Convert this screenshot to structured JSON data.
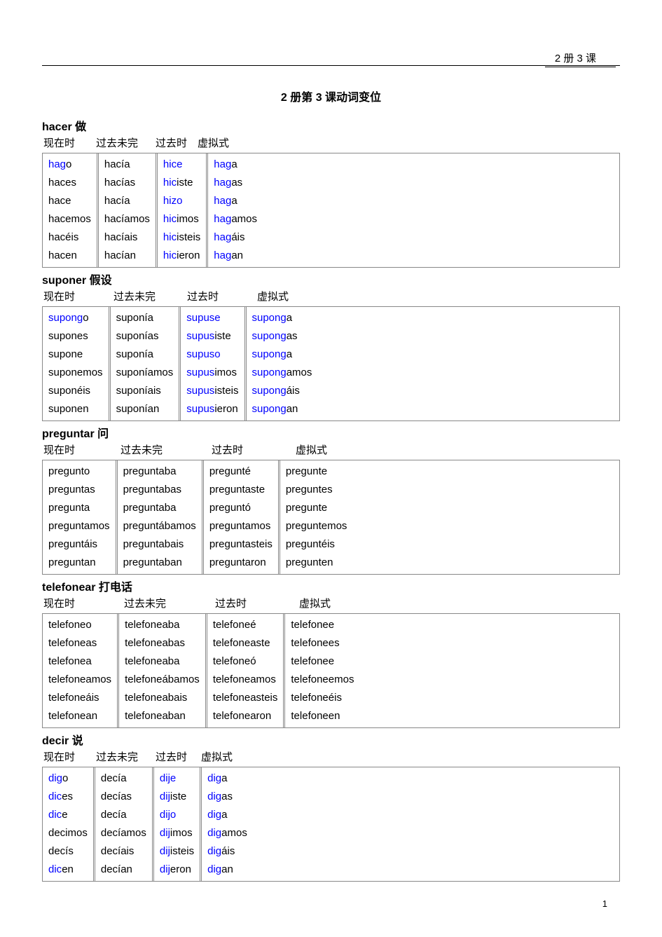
{
  "header_label": "2 册 3 课",
  "page_title": "2 册第 3 课动词变位",
  "page_number": "1",
  "tense_labels": [
    "现在时",
    "过去未完",
    "过去时",
    "虚拟式"
  ],
  "verbs": [
    {
      "title": "hacer 做",
      "header_widths": [
        75,
        85,
        60,
        60
      ],
      "cols": [
        [
          [
            {
              "t": "hag",
              "hl": true
            },
            {
              "t": "o"
            }
          ],
          [
            {
              "t": "haces"
            }
          ],
          [
            {
              "t": "hace"
            }
          ],
          [
            {
              "t": "hacemos"
            }
          ],
          [
            {
              "t": "hacéis"
            }
          ],
          [
            {
              "t": "hacen"
            }
          ]
        ],
        [
          [
            {
              "t": "hacía"
            }
          ],
          [
            {
              "t": "hacías"
            }
          ],
          [
            {
              "t": "hacía"
            }
          ],
          [
            {
              "t": "hacíamos"
            }
          ],
          [
            {
              "t": "hacíais"
            }
          ],
          [
            {
              "t": "hacían"
            }
          ]
        ],
        [
          [
            {
              "t": "hice",
              "hl": true
            }
          ],
          [
            {
              "t": "hic",
              "hl": true
            },
            {
              "t": "iste"
            }
          ],
          [
            {
              "t": "hizo",
              "hl": true
            }
          ],
          [
            {
              "t": "hic",
              "hl": true
            },
            {
              "t": "imos"
            }
          ],
          [
            {
              "t": "hic",
              "hl": true
            },
            {
              "t": "isteis"
            }
          ],
          [
            {
              "t": "hic",
              "hl": true
            },
            {
              "t": "ieron"
            }
          ]
        ],
        [
          [
            {
              "t": "hag",
              "hl": true
            },
            {
              "t": "a"
            }
          ],
          [
            {
              "t": "hag",
              "hl": true
            },
            {
              "t": "as"
            }
          ],
          [
            {
              "t": "hag",
              "hl": true
            },
            {
              "t": "a"
            }
          ],
          [
            {
              "t": "hag",
              "hl": true
            },
            {
              "t": "amos"
            }
          ],
          [
            {
              "t": "hag",
              "hl": true
            },
            {
              "t": "áis"
            }
          ],
          [
            {
              "t": "hag",
              "hl": true
            },
            {
              "t": "an"
            }
          ]
        ]
      ]
    },
    {
      "title": "suponer 假设",
      "header_widths": [
        100,
        105,
        100,
        90
      ],
      "cols": [
        [
          [
            {
              "t": "supong",
              "hl": true
            },
            {
              "t": "o"
            }
          ],
          [
            {
              "t": "supones"
            }
          ],
          [
            {
              "t": "supone"
            }
          ],
          [
            {
              "t": "suponemos"
            }
          ],
          [
            {
              "t": "suponéis"
            }
          ],
          [
            {
              "t": "suponen"
            }
          ]
        ],
        [
          [
            {
              "t": "suponía"
            }
          ],
          [
            {
              "t": "suponías"
            }
          ],
          [
            {
              "t": "suponía"
            }
          ],
          [
            {
              "t": "suponíamos"
            }
          ],
          [
            {
              "t": "suponíais"
            }
          ],
          [
            {
              "t": "suponían"
            }
          ]
        ],
        [
          [
            {
              "t": "supuse",
              "hl": true
            }
          ],
          [
            {
              "t": "supus",
              "hl": true
            },
            {
              "t": "iste"
            }
          ],
          [
            {
              "t": "supuso",
              "hl": true
            }
          ],
          [
            {
              "t": "supus",
              "hl": true
            },
            {
              "t": "imos"
            }
          ],
          [
            {
              "t": "supus",
              "hl": true
            },
            {
              "t": "isteis"
            }
          ],
          [
            {
              "t": "supus",
              "hl": true
            },
            {
              "t": "ieron"
            }
          ]
        ],
        [
          [
            {
              "t": "supong",
              "hl": true
            },
            {
              "t": "a"
            }
          ],
          [
            {
              "t": "supong",
              "hl": true
            },
            {
              "t": "as"
            }
          ],
          [
            {
              "t": "supong",
              "hl": true
            },
            {
              "t": "a"
            }
          ],
          [
            {
              "t": "supong",
              "hl": true
            },
            {
              "t": "amos"
            }
          ],
          [
            {
              "t": "supong",
              "hl": true
            },
            {
              "t": "áis"
            }
          ],
          [
            {
              "t": "supong",
              "hl": true
            },
            {
              "t": "an"
            }
          ]
        ]
      ]
    },
    {
      "title": "preguntar 问",
      "header_widths": [
        110,
        130,
        120,
        100
      ],
      "cols": [
        [
          [
            {
              "t": "pregunto"
            }
          ],
          [
            {
              "t": "preguntas"
            }
          ],
          [
            {
              "t": "pregunta"
            }
          ],
          [
            {
              "t": "preguntamos"
            }
          ],
          [
            {
              "t": "preguntáis"
            }
          ],
          [
            {
              "t": "preguntan"
            }
          ]
        ],
        [
          [
            {
              "t": "preguntaba"
            }
          ],
          [
            {
              "t": "preguntabas"
            }
          ],
          [
            {
              "t": "preguntaba"
            }
          ],
          [
            {
              "t": "preguntábamos"
            }
          ],
          [
            {
              "t": "preguntabais"
            }
          ],
          [
            {
              "t": "preguntaban"
            }
          ]
        ],
        [
          [
            {
              "t": "pregunté"
            }
          ],
          [
            {
              "t": "preguntaste"
            }
          ],
          [
            {
              "t": "preguntó"
            }
          ],
          [
            {
              "t": "preguntamos"
            }
          ],
          [
            {
              "t": "preguntasteis"
            }
          ],
          [
            {
              "t": "preguntaron"
            }
          ]
        ],
        [
          [
            {
              "t": "pregunte"
            }
          ],
          [
            {
              "t": "preguntes"
            }
          ],
          [
            {
              "t": "pregunte"
            }
          ],
          [
            {
              "t": "preguntemos"
            }
          ],
          [
            {
              "t": "preguntéis"
            }
          ],
          [
            {
              "t": "pregunten"
            }
          ]
        ]
      ]
    },
    {
      "title": "telefonear 打电话",
      "header_widths": [
        115,
        130,
        120,
        100
      ],
      "cols": [
        [
          [
            {
              "t": "telefoneo"
            }
          ],
          [
            {
              "t": "telefoneas"
            }
          ],
          [
            {
              "t": "telefonea"
            }
          ],
          [
            {
              "t": "telefoneamos"
            }
          ],
          [
            {
              "t": "telefoneáis"
            }
          ],
          [
            {
              "t": "telefonean"
            }
          ]
        ],
        [
          [
            {
              "t": "telefoneaba"
            }
          ],
          [
            {
              "t": "telefoneabas"
            }
          ],
          [
            {
              "t": "telefoneaba"
            }
          ],
          [
            {
              "t": "telefoneábamos"
            }
          ],
          [
            {
              "t": "telefoneabais"
            }
          ],
          [
            {
              "t": "telefoneaban"
            }
          ]
        ],
        [
          [
            {
              "t": "telefoneé"
            }
          ],
          [
            {
              "t": "telefoneaste"
            }
          ],
          [
            {
              "t": "telefoneó"
            }
          ],
          [
            {
              "t": "telefoneamos"
            }
          ],
          [
            {
              "t": "telefoneasteis"
            }
          ],
          [
            {
              "t": "telefonearon"
            }
          ]
        ],
        [
          [
            {
              "t": "telefonee"
            }
          ],
          [
            {
              "t": "telefonees"
            }
          ],
          [
            {
              "t": "telefonee"
            }
          ],
          [
            {
              "t": "telefoneemos"
            }
          ],
          [
            {
              "t": "telefoneéis"
            }
          ],
          [
            {
              "t": "telefoneen"
            }
          ]
        ]
      ]
    },
    {
      "title": "decir 说",
      "header_widths": [
        75,
        85,
        65,
        65
      ],
      "cols": [
        [
          [
            {
              "t": "dig",
              "hl": true
            },
            {
              "t": "o"
            }
          ],
          [
            {
              "t": "dic",
              "hl": true
            },
            {
              "t": "es"
            }
          ],
          [
            {
              "t": "dic",
              "hl": true
            },
            {
              "t": "e"
            }
          ],
          [
            {
              "t": "decimos"
            }
          ],
          [
            {
              "t": "decís"
            }
          ],
          [
            {
              "t": "dic",
              "hl": true
            },
            {
              "t": "en"
            }
          ]
        ],
        [
          [
            {
              "t": "decía"
            }
          ],
          [
            {
              "t": "decías"
            }
          ],
          [
            {
              "t": "decía"
            }
          ],
          [
            {
              "t": "decíamos"
            }
          ],
          [
            {
              "t": "decíais"
            }
          ],
          [
            {
              "t": "decían"
            }
          ]
        ],
        [
          [
            {
              "t": "dije",
              "hl": true
            }
          ],
          [
            {
              "t": "dij",
              "hl": true
            },
            {
              "t": "iste"
            }
          ],
          [
            {
              "t": "dijo",
              "hl": true
            }
          ],
          [
            {
              "t": "dij",
              "hl": true
            },
            {
              "t": "imos"
            }
          ],
          [
            {
              "t": "dij",
              "hl": true
            },
            {
              "t": "isteis"
            }
          ],
          [
            {
              "t": "dij",
              "hl": true
            },
            {
              "t": "eron"
            }
          ]
        ],
        [
          [
            {
              "t": "dig",
              "hl": true
            },
            {
              "t": "a"
            }
          ],
          [
            {
              "t": "dig",
              "hl": true
            },
            {
              "t": "as"
            }
          ],
          [
            {
              "t": "dig",
              "hl": true
            },
            {
              "t": "a"
            }
          ],
          [
            {
              "t": "dig",
              "hl": true
            },
            {
              "t": "amos"
            }
          ],
          [
            {
              "t": "dig",
              "hl": true
            },
            {
              "t": "áis"
            }
          ],
          [
            {
              "t": "dig",
              "hl": true
            },
            {
              "t": "an"
            }
          ]
        ]
      ]
    }
  ]
}
